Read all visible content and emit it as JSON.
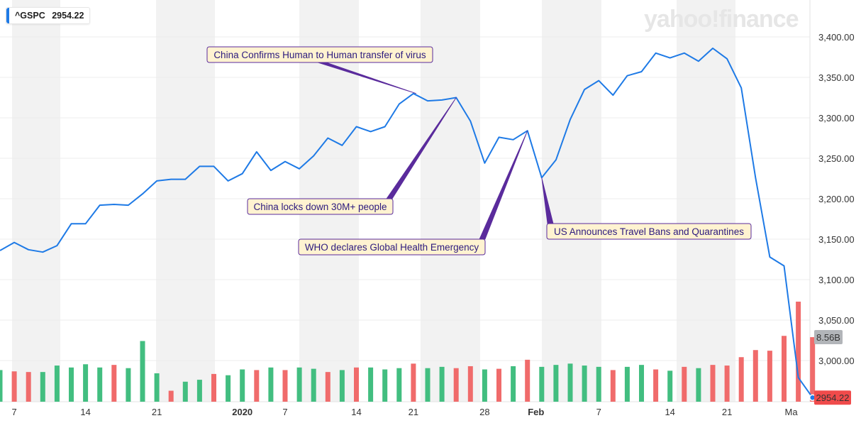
{
  "ticker": {
    "symbol": "^GSPC",
    "price": "2954.22"
  },
  "logo": {
    "text": "yahoo!finance"
  },
  "colors": {
    "line": "#1e7ae6",
    "up": "#42be80",
    "down": "#f06b6b",
    "band": "#f2f2f2",
    "annotation": "#5a2b9c",
    "annotation_fill": "#fff3d1",
    "price_label": "#f04b4b",
    "volume_label": "#b2b5b9"
  },
  "chart_data": {
    "type": "line",
    "title": "",
    "xlabel": "",
    "ylabel": "",
    "ylim": [
      2955,
      3450
    ],
    "price_ticks": [
      "3,400.00",
      "3,350.00",
      "3,300.00",
      "3,250.00",
      "3,200.00",
      "3,150.00",
      "3,100.00",
      "3,050.00",
      "3,000.00"
    ],
    "price_tick_values": [
      3400,
      3350,
      3300,
      3250,
      3200,
      3150,
      3100,
      3050,
      3000
    ],
    "x_ticks": [
      {
        "label": "7",
        "bold": false,
        "index": 1
      },
      {
        "label": "14",
        "bold": false,
        "index": 6
      },
      {
        "label": "21",
        "bold": false,
        "index": 11
      },
      {
        "label": "2020",
        "bold": true,
        "index": 17
      },
      {
        "label": "7",
        "bold": false,
        "index": 20
      },
      {
        "label": "14",
        "bold": false,
        "index": 25
      },
      {
        "label": "21",
        "bold": false,
        "index": 29
      },
      {
        "label": "28",
        "bold": false,
        "index": 34
      },
      {
        "label": "Feb",
        "bold": true,
        "index": 37.6
      },
      {
        "label": "7",
        "bold": false,
        "index": 42
      },
      {
        "label": "14",
        "bold": false,
        "index": 47
      },
      {
        "label": "21",
        "bold": false,
        "index": 51
      },
      {
        "label": "Ma",
        "bold": false,
        "index": 55.5
      }
    ],
    "series": [
      {
        "values": [
          3136,
          3146,
          3137,
          3134,
          3142,
          3169,
          3169,
          3192,
          3193,
          3192,
          3206,
          3222,
          3224,
          3224,
          3240,
          3240,
          3222,
          3231,
          3258,
          3235,
          3246,
          3237,
          3253,
          3275,
          3266,
          3289,
          3283,
          3289,
          3317,
          3330,
          3321,
          3322,
          3325,
          3296,
          3244,
          3276,
          3273,
          3284,
          3226,
          3248,
          3298,
          3335,
          3346,
          3328,
          3352,
          3357,
          3380,
          3374,
          3380,
          3370,
          3386,
          3373,
          3337,
          3226,
          3128,
          3117,
          2979,
          2954.22
        ]
      }
    ],
    "volume": {
      "label": "8.56B",
      "values": [
        0.49,
        0.47,
        0.46,
        0.46,
        0.56,
        0.53,
        0.58,
        0.53,
        0.57,
        0.52,
        0.94,
        0.44,
        0.17,
        0.31,
        0.34,
        0.43,
        0.41,
        0.5,
        0.49,
        0.53,
        0.49,
        0.53,
        0.51,
        0.46,
        0.49,
        0.53,
        0.53,
        0.5,
        0.52,
        0.59,
        0.52,
        0.54,
        0.52,
        0.55,
        0.5,
        0.51,
        0.55,
        0.65,
        0.54,
        0.57,
        0.59,
        0.56,
        0.54,
        0.49,
        0.54,
        0.57,
        0.5,
        0.48,
        0.54,
        0.52,
        0.57,
        0.56,
        0.69,
        0.8,
        0.79,
        1.02,
        1.55,
        1.0
      ],
      "up": [
        1,
        0,
        0,
        1,
        1,
        1,
        1,
        1,
        0,
        1,
        1,
        1,
        0,
        1,
        1,
        0,
        1,
        1,
        0,
        1,
        0,
        1,
        1,
        0,
        1,
        0,
        1,
        1,
        1,
        0,
        1,
        1,
        0,
        0,
        1,
        0,
        1,
        0,
        1,
        1,
        1,
        1,
        1,
        0,
        1,
        1,
        0,
        1,
        0,
        1,
        0,
        0,
        0,
        0,
        0,
        0,
        0,
        0
      ],
      "max_full": 1.55
    },
    "annotations": [
      {
        "text": "China Confirms Human to Human transfer of virus",
        "index": 29.2,
        "value": 3330
      },
      {
        "text": "China locks down 30M+ people",
        "index": 32,
        "value": 3325
      },
      {
        "text": "WHO declares Global Health Emergency",
        "index": 37,
        "value": 3284
      },
      {
        "text": "US Announces Travel Bans and Quarantines",
        "index": 38,
        "value": 3226
      }
    ],
    "last_price_label": "2954.22"
  }
}
